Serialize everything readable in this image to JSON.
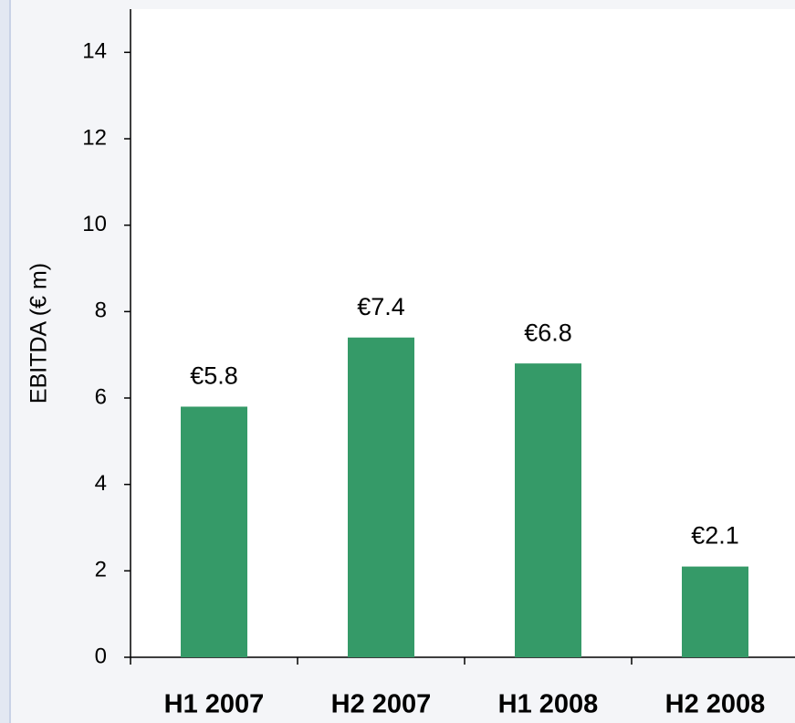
{
  "chart_data": {
    "type": "bar",
    "y_label": "EBITDA (€ m)",
    "categories": [
      "H1 2007",
      "H2 2007",
      "H1 2008",
      "H2 2008"
    ],
    "values": [
      5.8,
      7.4,
      6.8,
      2.1
    ],
    "value_labels": [
      "€5.8",
      "€7.4",
      "€6.8",
      "€2.1"
    ],
    "color": "#359a68",
    "ylim": [
      0,
      15
    ],
    "yticks": [
      0,
      2,
      4,
      6,
      8,
      10,
      12,
      14
    ],
    "grid": false
  }
}
